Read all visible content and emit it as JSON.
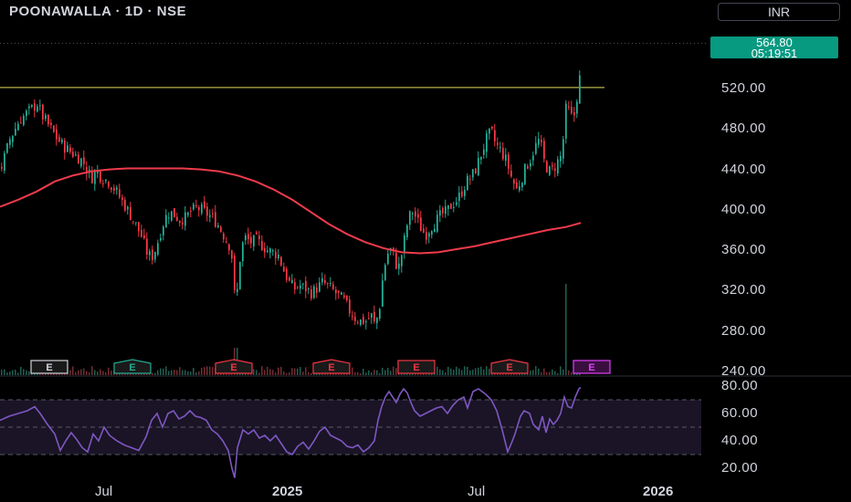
{
  "header": {
    "ticker": "POONAWALLA · 1D · NSE",
    "currency": "INR"
  },
  "last_price": {
    "price": "564.80",
    "countdown": "05:19:51",
    "color": "#089981"
  },
  "colors": {
    "up": "#22ab94",
    "down": "#f23645",
    "ma": "#ef3b4b",
    "rsi": "#7e57c2",
    "resistance": "#b8b24a",
    "background": "#000000"
  },
  "chart_data": [
    {
      "type": "candlestick",
      "title": "POONAWALLA · 1D · NSE",
      "currency": "INR",
      "y_ticks": [
        "520.00",
        "480.00",
        "440.00",
        "400.00",
        "360.00",
        "320.00",
        "280.00",
        "240.00"
      ],
      "ylim": [
        240,
        564.8
      ],
      "x_ticks": [
        {
          "label": "Jul",
          "bold": false
        },
        {
          "label": "2025",
          "bold": true
        },
        {
          "label": "Jul",
          "bold": false
        },
        {
          "label": "2026",
          "bold": true
        }
      ],
      "close_path": [
        [
          0,
          440
        ],
        [
          10,
          470
        ],
        [
          20,
          488
        ],
        [
          30,
          497
        ],
        [
          40,
          505
        ],
        [
          46,
          492
        ],
        [
          55,
          480
        ],
        [
          62,
          470
        ],
        [
          70,
          462
        ],
        [
          80,
          455
        ],
        [
          90,
          448
        ],
        [
          95,
          438
        ],
        [
          100,
          432
        ],
        [
          105,
          440
        ],
        [
          110,
          432
        ],
        [
          118,
          428
        ],
        [
          125,
          420
        ],
        [
          132,
          410
        ],
        [
          140,
          398
        ],
        [
          148,
          385
        ],
        [
          155,
          372
        ],
        [
          160,
          358
        ],
        [
          165,
          352
        ],
        [
          170,
          362
        ],
        [
          175,
          378
        ],
        [
          180,
          392
        ],
        [
          185,
          398
        ],
        [
          190,
          395
        ],
        [
          196,
          390
        ],
        [
          202,
          392
        ],
        [
          208,
          398
        ],
        [
          214,
          402
        ],
        [
          220,
          400
        ],
        [
          226,
          396
        ],
        [
          232,
          392
        ],
        [
          238,
          385
        ],
        [
          244,
          375
        ],
        [
          250,
          365
        ],
        [
          254,
          350
        ],
        [
          257,
          300
        ],
        [
          260,
          330
        ],
        [
          263,
          362
        ],
        [
          268,
          372
        ],
        [
          274,
          368
        ],
        [
          280,
          370
        ],
        [
          286,
          365
        ],
        [
          292,
          360
        ],
        [
          298,
          358
        ],
        [
          304,
          355
        ],
        [
          310,
          340
        ],
        [
          316,
          328
        ],
        [
          322,
          322
        ],
        [
          328,
          325
        ],
        [
          334,
          322
        ],
        [
          340,
          318
        ],
        [
          346,
          322
        ],
        [
          352,
          328
        ],
        [
          358,
          325
        ],
        [
          364,
          320
        ],
        [
          370,
          315
        ],
        [
          376,
          310
        ],
        [
          382,
          300
        ],
        [
          388,
          293
        ],
        [
          394,
          290
        ],
        [
          400,
          290
        ],
        [
          406,
          295
        ],
        [
          410,
          285
        ],
        [
          415,
          305
        ],
        [
          418,
          330
        ],
        [
          422,
          352
        ],
        [
          426,
          362
        ],
        [
          430,
          355
        ],
        [
          435,
          340
        ],
        [
          440,
          360
        ],
        [
          445,
          385
        ],
        [
          450,
          400
        ],
        [
          455,
          392
        ],
        [
          460,
          382
        ],
        [
          465,
          375
        ],
        [
          470,
          382
        ],
        [
          476,
          388
        ],
        [
          482,
          395
        ],
        [
          488,
          398
        ],
        [
          494,
          405
        ],
        [
          500,
          410
        ],
        [
          505,
          418
        ],
        [
          510,
          428
        ],
        [
          515,
          432
        ],
        [
          520,
          440
        ],
        [
          526,
          455
        ],
        [
          532,
          470
        ],
        [
          537,
          478
        ],
        [
          542,
          465
        ],
        [
          548,
          458
        ],
        [
          554,
          448
        ],
        [
          560,
          430
        ],
        [
          565,
          420
        ],
        [
          570,
          430
        ],
        [
          575,
          442
        ],
        [
          580,
          450
        ],
        [
          585,
          462
        ],
        [
          590,
          470
        ],
        [
          595,
          448
        ],
        [
          600,
          438
        ],
        [
          605,
          440
        ],
        [
          610,
          448
        ],
        [
          615,
          455
        ],
        [
          618,
          500
        ],
        [
          622,
          498
        ],
        [
          627,
          488
        ],
        [
          631,
          512
        ],
        [
          634,
          530
        ],
        [
          636,
          564.8
        ]
      ],
      "ma200": [
        [
          0,
          403
        ],
        [
          20,
          410
        ],
        [
          40,
          418
        ],
        [
          60,
          428
        ],
        [
          80,
          434
        ],
        [
          100,
          438
        ],
        [
          120,
          440
        ],
        [
          140,
          441
        ],
        [
          160,
          441
        ],
        [
          180,
          441
        ],
        [
          200,
          441
        ],
        [
          220,
          440
        ],
        [
          240,
          438
        ],
        [
          260,
          434
        ],
        [
          280,
          428
        ],
        [
          300,
          420
        ],
        [
          320,
          410
        ],
        [
          340,
          398
        ],
        [
          360,
          386
        ],
        [
          380,
          376
        ],
        [
          400,
          368
        ],
        [
          420,
          362
        ],
        [
          440,
          358
        ],
        [
          460,
          357
        ],
        [
          480,
          358
        ],
        [
          500,
          361
        ],
        [
          520,
          364
        ],
        [
          540,
          368
        ],
        [
          560,
          372
        ],
        [
          580,
          376
        ],
        [
          600,
          380
        ],
        [
          620,
          383
        ],
        [
          636,
          387
        ]
      ],
      "resistance_level": 521,
      "resistance_span": [
        0,
        662
      ],
      "earnings_markers": [
        {
          "label": "E",
          "color": "#d1d4dc",
          "shape": "square"
        },
        {
          "label": "E",
          "color": "#22ab94",
          "shape": "flag"
        },
        {
          "label": "E",
          "color": "#f23645",
          "shape": "flag"
        },
        {
          "label": "E",
          "color": "#f23645",
          "shape": "flag"
        },
        {
          "label": "E",
          "color": "#f23645",
          "shape": "square"
        },
        {
          "label": "E",
          "color": "#f23645",
          "shape": "flag"
        },
        {
          "label": "E",
          "color": "#e040fb",
          "shape": "square"
        }
      ]
    },
    {
      "type": "line",
      "name": "RSI",
      "y_ticks": [
        "80.00",
        "60.00",
        "40.00",
        "20.00"
      ],
      "ylim": [
        13,
        82
      ],
      "bands": [
        30,
        50,
        70
      ],
      "values": [
        [
          0,
          55
        ],
        [
          10,
          58
        ],
        [
          20,
          60
        ],
        [
          30,
          62
        ],
        [
          38,
          65
        ],
        [
          44,
          60
        ],
        [
          52,
          52
        ],
        [
          60,
          45
        ],
        [
          66,
          33
        ],
        [
          72,
          40
        ],
        [
          78,
          46
        ],
        [
          84,
          41
        ],
        [
          90,
          35
        ],
        [
          96,
          32
        ],
        [
          102,
          45
        ],
        [
          108,
          40
        ],
        [
          114,
          50
        ],
        [
          120,
          44
        ],
        [
          128,
          40
        ],
        [
          136,
          37
        ],
        [
          144,
          35
        ],
        [
          152,
          33
        ],
        [
          160,
          43
        ],
        [
          166,
          55
        ],
        [
          172,
          60
        ],
        [
          178,
          50
        ],
        [
          184,
          60
        ],
        [
          190,
          62
        ],
        [
          196,
          56
        ],
        [
          202,
          58
        ],
        [
          208,
          62
        ],
        [
          214,
          58
        ],
        [
          220,
          57
        ],
        [
          226,
          55
        ],
        [
          232,
          48
        ],
        [
          238,
          45
        ],
        [
          244,
          40
        ],
        [
          250,
          33
        ],
        [
          254,
          20
        ],
        [
          257,
          13
        ],
        [
          260,
          35
        ],
        [
          266,
          48
        ],
        [
          272,
          45
        ],
        [
          278,
          48
        ],
        [
          284,
          42
        ],
        [
          290,
          44
        ],
        [
          296,
          40
        ],
        [
          302,
          44
        ],
        [
          308,
          38
        ],
        [
          314,
          32
        ],
        [
          320,
          30
        ],
        [
          326,
          36
        ],
        [
          332,
          39
        ],
        [
          338,
          34
        ],
        [
          344,
          40
        ],
        [
          350,
          47
        ],
        [
          356,
          50
        ],
        [
          362,
          44
        ],
        [
          368,
          42
        ],
        [
          374,
          40
        ],
        [
          380,
          36
        ],
        [
          386,
          35
        ],
        [
          392,
          37
        ],
        [
          398,
          32
        ],
        [
          404,
          35
        ],
        [
          410,
          40
        ],
        [
          414,
          55
        ],
        [
          418,
          65
        ],
        [
          422,
          72
        ],
        [
          426,
          76
        ],
        [
          430,
          72
        ],
        [
          434,
          68
        ],
        [
          438,
          74
        ],
        [
          442,
          78
        ],
        [
          446,
          75
        ],
        [
          450,
          68
        ],
        [
          454,
          62
        ],
        [
          460,
          58
        ],
        [
          466,
          60
        ],
        [
          472,
          62
        ],
        [
          478,
          64
        ],
        [
          484,
          65
        ],
        [
          490,
          60
        ],
        [
          496,
          66
        ],
        [
          502,
          70
        ],
        [
          508,
          72
        ],
        [
          512,
          64
        ],
        [
          518,
          76
        ],
        [
          524,
          78
        ],
        [
          528,
          76
        ],
        [
          532,
          74
        ],
        [
          538,
          70
        ],
        [
          544,
          62
        ],
        [
          550,
          48
        ],
        [
          556,
          32
        ],
        [
          560,
          38
        ],
        [
          564,
          45
        ],
        [
          570,
          58
        ],
        [
          574,
          62
        ],
        [
          580,
          60
        ],
        [
          584,
          52
        ],
        [
          590,
          48
        ],
        [
          594,
          58
        ],
        [
          598,
          46
        ],
        [
          602,
          56
        ],
        [
          606,
          52
        ],
        [
          610,
          55
        ],
        [
          614,
          60
        ],
        [
          618,
          72
        ],
        [
          622,
          65
        ],
        [
          626,
          64
        ],
        [
          630,
          72
        ],
        [
          634,
          78
        ],
        [
          636,
          79
        ]
      ]
    }
  ]
}
